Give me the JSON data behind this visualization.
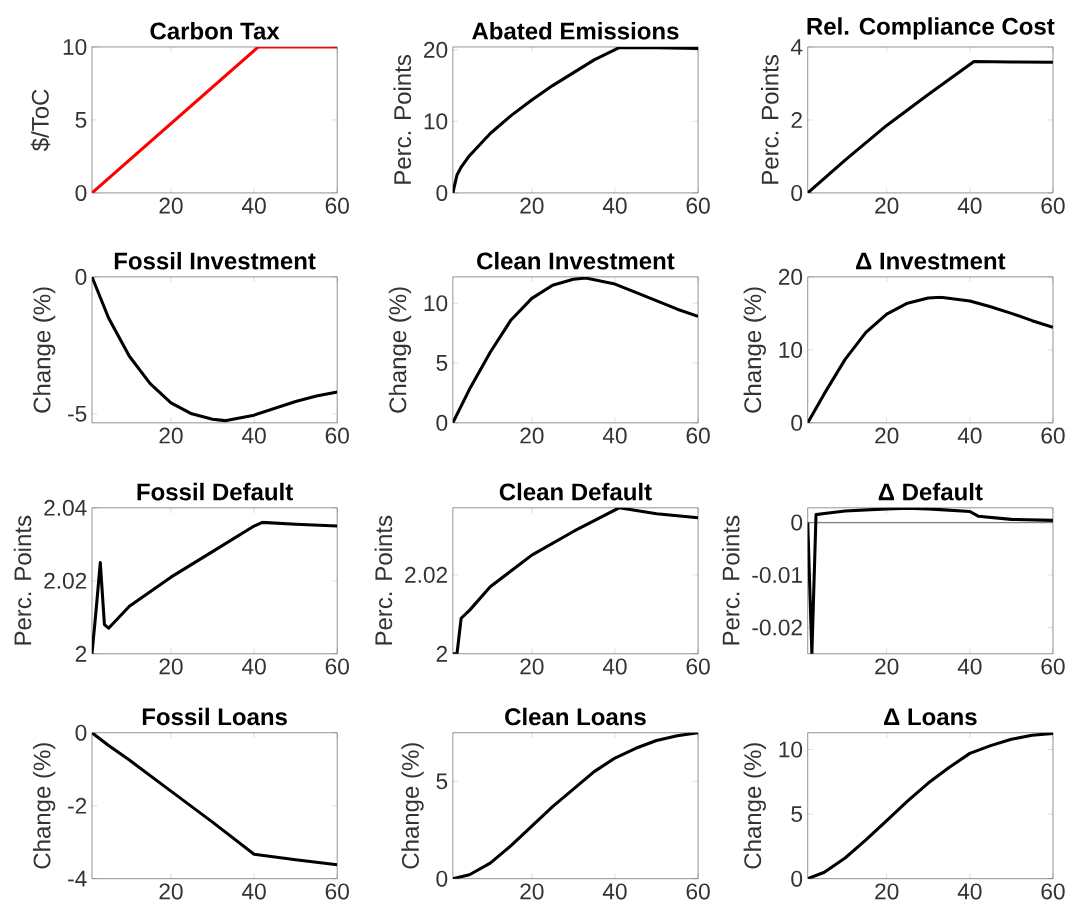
{
  "chart_data": [
    {
      "type": "line",
      "title": "Carbon Tax",
      "ylabel": "$/ToC",
      "x": [
        1,
        41,
        60
      ],
      "series": [
        {
          "color": "#ff0000",
          "values": [
            0,
            10,
            10
          ]
        }
      ],
      "xlim": [
        1,
        60
      ],
      "ylim": [
        0,
        10
      ],
      "xticks": [
        20,
        40,
        60
      ],
      "yticks": [
        0,
        5,
        10
      ]
    },
    {
      "type": "line",
      "title": "Abated Emissions",
      "ylabel": "Perc. Points",
      "x": [
        1,
        2,
        3,
        5,
        10,
        15,
        20,
        25,
        30,
        35,
        41,
        50,
        60
      ],
      "series": [
        {
          "color": "#000000",
          "values": [
            0,
            2.5,
            3.6,
            5.2,
            8.3,
            10.8,
            13.0,
            15.0,
            16.8,
            18.6,
            20.3,
            20.3,
            20.2
          ]
        }
      ],
      "xlim": [
        1,
        60
      ],
      "ylim": [
        0,
        20.4
      ],
      "xticks": [
        20,
        40,
        60
      ],
      "yticks": [
        0,
        10,
        20
      ]
    },
    {
      "type": "line",
      "title": "Rel. Compliance Cost",
      "ylabel": "Perc. Points",
      "x": [
        1,
        10,
        20,
        30,
        41,
        50,
        60
      ],
      "series": [
        {
          "color": "#000000",
          "values": [
            0,
            0.9,
            1.85,
            2.7,
            3.6,
            3.59,
            3.58
          ]
        }
      ],
      "xlim": [
        1,
        60
      ],
      "ylim": [
        0,
        4
      ],
      "xticks": [
        20,
        40,
        60
      ],
      "yticks": [
        0,
        2,
        4
      ]
    },
    {
      "type": "line",
      "title": "Fossil Investment",
      "ylabel": "Change (%)",
      "x": [
        1,
        5,
        10,
        15,
        20,
        25,
        30,
        33,
        40,
        45,
        50,
        55,
        60
      ],
      "series": [
        {
          "color": "#000000",
          "values": [
            0,
            -1.5,
            -2.9,
            -3.9,
            -4.6,
            -5.0,
            -5.2,
            -5.25,
            -5.05,
            -4.8,
            -4.55,
            -4.35,
            -4.2
          ]
        }
      ],
      "xlim": [
        1,
        60
      ],
      "ylim": [
        -5.33,
        0
      ],
      "xticks": [
        20,
        40,
        60
      ],
      "yticks": [
        -5,
        0
      ]
    },
    {
      "type": "line",
      "title": "Clean Investment",
      "ylabel": "Change (%)",
      "x": [
        1,
        5,
        10,
        15,
        20,
        25,
        30,
        33,
        40,
        45,
        50,
        55,
        60
      ],
      "series": [
        {
          "color": "#000000",
          "values": [
            0,
            2.8,
            5.9,
            8.6,
            10.4,
            11.5,
            12.0,
            12.1,
            11.6,
            10.9,
            10.2,
            9.5,
            8.9
          ]
        }
      ],
      "xlim": [
        1,
        60
      ],
      "ylim": [
        0,
        12.2
      ],
      "xticks": [
        20,
        40,
        60
      ],
      "yticks": [
        0,
        5,
        10
      ]
    },
    {
      "type": "line",
      "title": "Δ Investment",
      "ylabel": "Change (%)",
      "x": [
        1,
        5,
        10,
        15,
        20,
        25,
        30,
        33,
        40,
        45,
        50,
        55,
        60
      ],
      "series": [
        {
          "color": "#000000",
          "values": [
            0,
            4.0,
            8.7,
            12.4,
            14.9,
            16.4,
            17.1,
            17.2,
            16.7,
            15.9,
            15.0,
            14.0,
            13.1
          ]
        }
      ],
      "xlim": [
        1,
        60
      ],
      "ylim": [
        0,
        20
      ],
      "xticks": [
        20,
        40,
        60
      ],
      "yticks": [
        0,
        10,
        20
      ]
    },
    {
      "type": "line",
      "title": "Fossil Default",
      "ylabel": "Perc. Points",
      "x": [
        1,
        2,
        3,
        4,
        5,
        10,
        20,
        30,
        40,
        42,
        50,
        60
      ],
      "series": [
        {
          "color": "#000000",
          "values": [
            2.0,
            2.012,
            2.025,
            2.008,
            2.007,
            2.013,
            2.021,
            2.028,
            2.035,
            2.036,
            2.0355,
            2.035
          ]
        }
      ],
      "xlim": [
        1,
        60
      ],
      "ylim": [
        2,
        2.04
      ],
      "xticks": [
        20,
        40,
        60
      ],
      "yticks": [
        2,
        2.02,
        2.04
      ]
    },
    {
      "type": "line",
      "title": "Clean Default",
      "ylabel": "Perc. Points",
      "x": [
        1,
        2,
        3,
        5,
        10,
        20,
        30,
        41,
        50,
        60
      ],
      "series": [
        {
          "color": "#000000",
          "values": [
            2.0,
            2.0,
            2.009,
            2.011,
            2.017,
            2.025,
            2.031,
            2.037,
            2.0355,
            2.0345
          ]
        }
      ],
      "xlim": [
        1,
        60
      ],
      "ylim": [
        2,
        2.037
      ],
      "xticks": [
        20,
        40,
        60
      ],
      "yticks": [
        2,
        2.02
      ]
    },
    {
      "type": "line",
      "title": "Δ Default",
      "ylabel": "Perc. Points",
      "x": [
        1,
        2,
        3,
        5,
        10,
        20,
        25,
        30,
        40,
        42,
        50,
        60
      ],
      "series": [
        {
          "color": "#000000",
          "values": [
            0,
            -0.025,
            0.0015,
            0.0017,
            0.0022,
            0.0026,
            0.0027,
            0.0026,
            0.0021,
            0.0012,
            0.0006,
            0.0004
          ]
        }
      ],
      "xlim": [
        1,
        60
      ],
      "ylim": [
        -0.025,
        0.0028
      ],
      "xticks": [
        20,
        40,
        60
      ],
      "yticks": [
        -0.02,
        -0.01,
        0
      ],
      "ref_lines": [
        {
          "axis": "y",
          "value": 0,
          "color": "#808080"
        }
      ]
    },
    {
      "type": "line",
      "title": "Fossil Loans",
      "ylabel": "Change (%)",
      "x": [
        1,
        5,
        10,
        20,
        30,
        40,
        50,
        60
      ],
      "series": [
        {
          "color": "#000000",
          "values": [
            0,
            -0.35,
            -0.75,
            -1.6,
            -2.45,
            -3.33,
            -3.48,
            -3.62
          ]
        }
      ],
      "xlim": [
        1,
        60
      ],
      "ylim": [
        -4,
        0
      ],
      "xticks": [
        20,
        40,
        60
      ],
      "yticks": [
        -4,
        -2,
        0
      ]
    },
    {
      "type": "line",
      "title": "Clean Loans",
      "ylabel": "Change (%)",
      "x": [
        1,
        5,
        10,
        15,
        20,
        25,
        30,
        35,
        40,
        45,
        50,
        55,
        60
      ],
      "series": [
        {
          "color": "#000000",
          "values": [
            0,
            0.2,
            0.8,
            1.7,
            2.7,
            3.7,
            4.6,
            5.5,
            6.2,
            6.7,
            7.1,
            7.35,
            7.5
          ]
        }
      ],
      "xlim": [
        1,
        60
      ],
      "ylim": [
        0,
        7.5
      ],
      "xticks": [
        20,
        40,
        60
      ],
      "yticks": [
        0,
        5
      ]
    },
    {
      "type": "line",
      "title": "Δ Loans",
      "ylabel": "Change (%)",
      "x": [
        1,
        5,
        10,
        15,
        20,
        25,
        30,
        35,
        40,
        45,
        50,
        55,
        60
      ],
      "series": [
        {
          "color": "#000000",
          "values": [
            0,
            0.5,
            1.6,
            3.0,
            4.5,
            6.0,
            7.4,
            8.6,
            9.7,
            10.3,
            10.8,
            11.1,
            11.25
          ]
        }
      ],
      "xlim": [
        1,
        60
      ],
      "ylim": [
        0,
        11.3
      ],
      "xticks": [
        20,
        40,
        60
      ],
      "yticks": [
        0,
        5,
        10
      ]
    }
  ]
}
